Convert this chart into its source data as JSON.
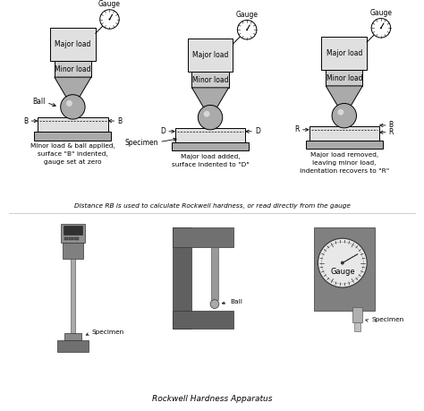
{
  "bg_color": "#ffffff",
  "fig_width": 4.74,
  "fig_height": 4.59,
  "dpi": 100,
  "top_caption": "Distance RB is used to calculate Rockwell hardness, or read directly from the gauge",
  "bottom_caption": "Rockwell Hardness Apparatus",
  "diagram1": {
    "title_lines": [
      "Minor load & ball applied,",
      "surface \"B\" indented,",
      "gauge set at zero"
    ],
    "label_gauge": "Gauge",
    "label_major": "Major load",
    "label_minor": "Minor load",
    "label_ball": "Ball",
    "marker": "B"
  },
  "diagram2": {
    "title_lines": [
      "Major load added,",
      "surface indented to \"D\""
    ],
    "label_gauge": "Gauge",
    "label_major": "Major load",
    "label_minor": "Minor load",
    "label_specimen": "Specimen",
    "marker": "D"
  },
  "diagram3": {
    "title_lines": [
      "Major load removed,",
      "leaving minor load,",
      "indentation recovers to \"R\""
    ],
    "label_gauge": "Gauge",
    "label_major": "Major load",
    "label_minor": "Minor load",
    "marker": "R"
  },
  "photo1_label": "Specimen",
  "photo2_label": "Ball",
  "photo3_label_gauge": "Gauge",
  "photo3_label_specimen": "Specimen",
  "gray_light": "#e0e0e0",
  "gray_light2": "#cccccc",
  "gray_mid": "#aaaaaa",
  "gray_dark": "#888888",
  "gray_darker": "#555555",
  "text_color": "#000000",
  "line_color": "#000000"
}
